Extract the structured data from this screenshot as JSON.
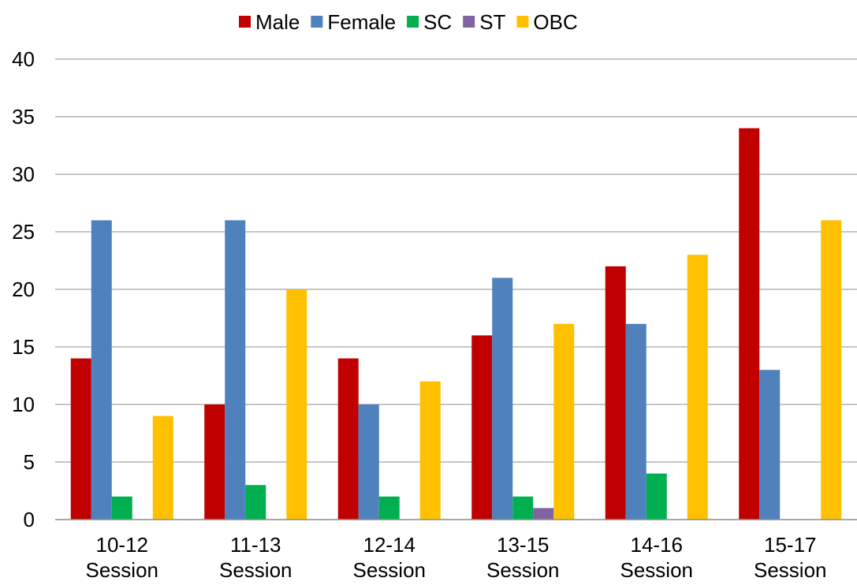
{
  "chart_data": {
    "type": "bar",
    "categories": [
      [
        "10-12",
        "Session"
      ],
      [
        "11-13",
        "Session"
      ],
      [
        "12-14",
        "Session"
      ],
      [
        "13-15",
        "Session"
      ],
      [
        "14-16",
        "Session"
      ],
      [
        "15-17",
        "Session"
      ]
    ],
    "series": [
      {
        "name": "Male",
        "color": "#C00000",
        "values": [
          14,
          10,
          14,
          16,
          22,
          34
        ]
      },
      {
        "name": "Female",
        "color": "#4F81BD",
        "values": [
          26,
          26,
          10,
          21,
          17,
          13
        ]
      },
      {
        "name": "SC",
        "color": "#00B050",
        "values": [
          2,
          3,
          2,
          2,
          4,
          0
        ]
      },
      {
        "name": "ST",
        "color": "#8064A2",
        "values": [
          0,
          0,
          0,
          1,
          0,
          0
        ]
      },
      {
        "name": "OBC",
        "color": "#FFC000",
        "values": [
          9,
          20,
          12,
          17,
          23,
          26
        ]
      }
    ],
    "ylim": [
      0,
      40
    ],
    "yticks": [
      "0",
      "5",
      "10",
      "15",
      "20",
      "25",
      "30",
      "35",
      "40"
    ],
    "grid": true,
    "legend_position": "top",
    "title": "",
    "xlabel": "",
    "ylabel": ""
  }
}
